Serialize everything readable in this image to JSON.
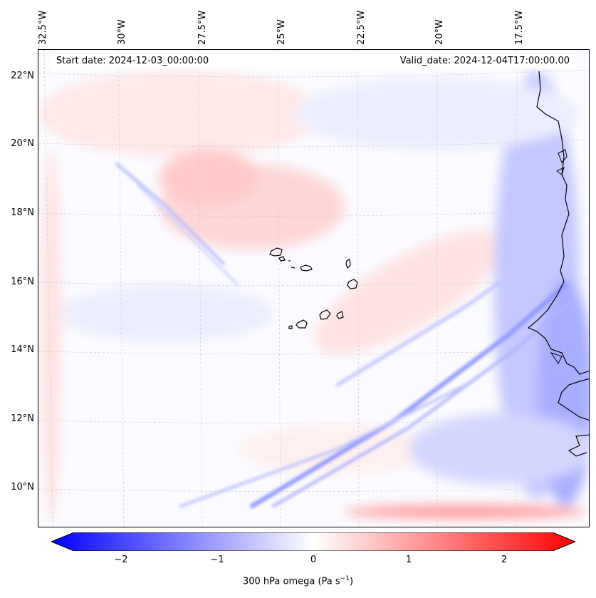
{
  "map": {
    "start_date": "Start date: 2024-12-03_00:00:00",
    "valid_date": "Valid_date: 2024-12-04T17:00:00.00",
    "lon_labels": [
      "32.5°W",
      "30°W",
      "27.5°W",
      "25°W",
      "22.5°W",
      "20°W",
      "17.5°W"
    ],
    "lat_labels": [
      "22°N",
      "20°N",
      "18°N",
      "16°N",
      "14°N",
      "12°N",
      "10°N"
    ],
    "variable": "300 hPa omega",
    "units": "(Pa s",
    "units_exp": "−1",
    "units_close": ")",
    "colorbar": {
      "ticks": [
        "−2",
        "−1",
        "0",
        "1",
        "2"
      ],
      "min": -2.5,
      "max": 2.5,
      "cmap": "bwr",
      "low_color": "#0000ff",
      "mid_color": "#ffffff",
      "high_color": "#ff0000"
    }
  }
}
